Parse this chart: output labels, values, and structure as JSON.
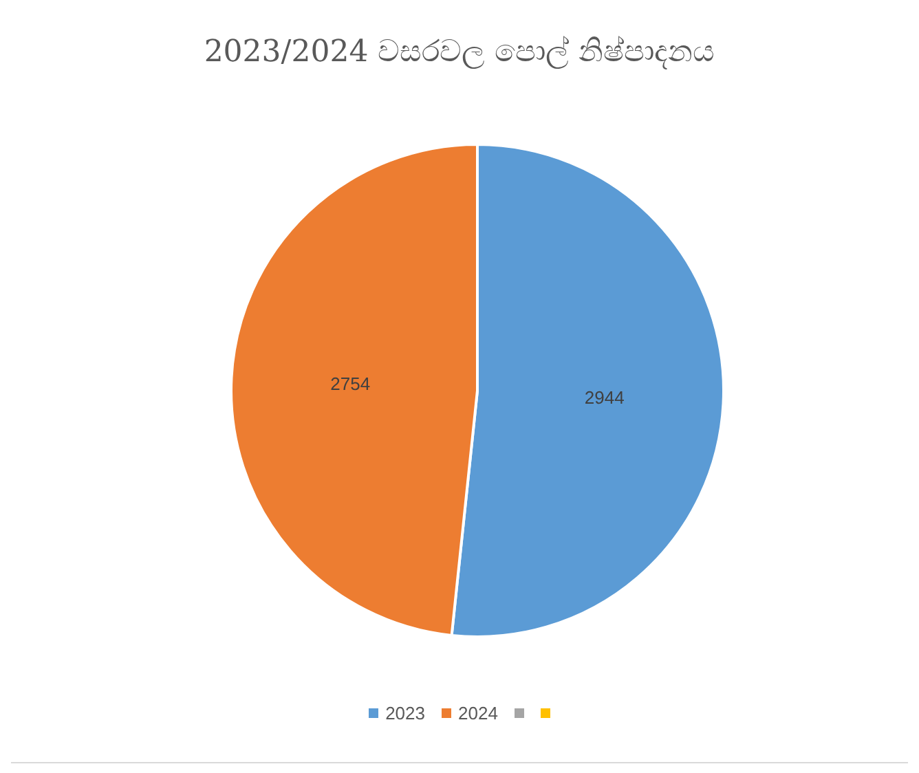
{
  "chart_data": {
    "type": "pie",
    "title": "2023/2024 වසරවල පොල් නිෂ්පාදනය",
    "categories": [
      "2023",
      "2024",
      null,
      null
    ],
    "values": [
      2944,
      2754,
      null,
      null
    ],
    "colors": [
      "#5b9bd5",
      "#ed7d31",
      "#a5a5a5",
      "#ffc000"
    ],
    "data_labels": true,
    "legend": "bottom"
  }
}
